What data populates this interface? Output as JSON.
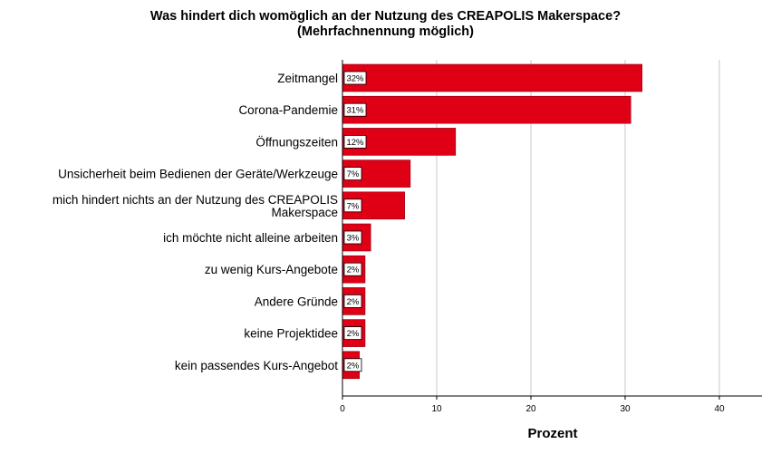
{
  "chart_data": {
    "type": "bar",
    "orientation": "horizontal",
    "title_line1": "Was hindert dich womöglich an der Nutzung des CREAPOLIS Makerspace?",
    "title_line2": "(Mehrfachnennung möglich)",
    "xlabel": "Prozent",
    "ylabel": "",
    "xlim": [
      0,
      44
    ],
    "xticks": [
      0,
      10,
      20,
      30,
      40
    ],
    "grid": true,
    "bar_color": "#e00016",
    "categories": [
      [
        "Zeitmangel"
      ],
      [
        "Corona-Pandemie"
      ],
      [
        "Öffnungszeiten"
      ],
      [
        "Unsicherheit beim Bedienen der Geräte/Werkzeuge"
      ],
      [
        "mich hindert nichts an der Nutzung des CREAPOLIS",
        "Makerspace"
      ],
      [
        "ich möchte nicht alleine arbeiten"
      ],
      [
        "zu wenig Kurs-Angebote"
      ],
      [
        "Andere Gründe"
      ],
      [
        "keine Projektidee"
      ],
      [
        "kein passendes Kurs-Angebot"
      ]
    ],
    "values": [
      31.8,
      30.6,
      12.0,
      7.2,
      6.6,
      3.0,
      2.4,
      2.4,
      2.4,
      1.8
    ],
    "data_labels": [
      "32%",
      "31%",
      "12%",
      "7%",
      "7%",
      "3%",
      "2%",
      "2%",
      "2%",
      "2%"
    ]
  }
}
